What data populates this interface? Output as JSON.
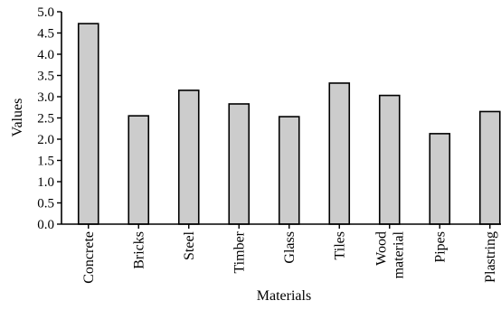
{
  "chart_data": {
    "type": "bar",
    "xlabel": "Materials",
    "ylabel": "Values",
    "ylim": [
      0,
      5.0
    ],
    "yticks": [
      "0.0",
      "0.5",
      "1.0",
      "1.5",
      "2.0",
      "2.5",
      "3.0",
      "3.5",
      "4.0",
      "4.5",
      "5.0"
    ],
    "categories": [
      [
        "Concrete"
      ],
      [
        "Bricks"
      ],
      [
        "Steel"
      ],
      [
        "Timber"
      ],
      [
        "Glass"
      ],
      [
        "Tiles"
      ],
      [
        "Wood",
        "material"
      ],
      [
        "Pipes"
      ],
      [
        "Plastring"
      ]
    ],
    "values": [
      4.72,
      2.55,
      3.15,
      2.83,
      2.53,
      3.32,
      3.03,
      2.13,
      2.65
    ],
    "colors": {
      "bar_fill": "#cccccc",
      "bar_stroke": "#000000"
    },
    "grid": false,
    "legend": "none"
  }
}
